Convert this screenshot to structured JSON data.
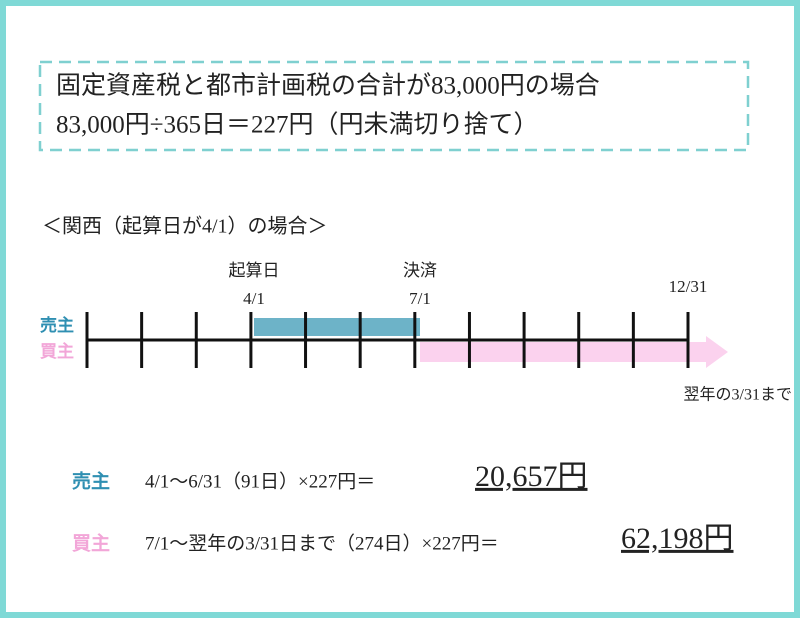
{
  "header": {
    "lines": [
      "固定資産税と都市計画税の合計が83,000円の場合",
      "83,000円÷365日＝227円（円未満切り捨て）"
    ]
  },
  "section": {
    "title": "＜関西（起算日が4/1）の場合＞"
  },
  "timeline": {
    "seller": "売主",
    "buyer": "買主",
    "start_label": "起算日",
    "start_date": "4/1",
    "settle_label": "決済",
    "settle_date": "7/1",
    "end_date": "12/31",
    "arrow_note": "翌年の3/31まで"
  },
  "results": [
    {
      "party": "売主",
      "formula": "4/1〜6/31（91日）×227円＝",
      "amount": "20,657円"
    },
    {
      "party": "買主",
      "formula": "7/1〜翌年の3/31日まで（274日）×227円＝",
      "amount": "62,198円"
    }
  ]
}
